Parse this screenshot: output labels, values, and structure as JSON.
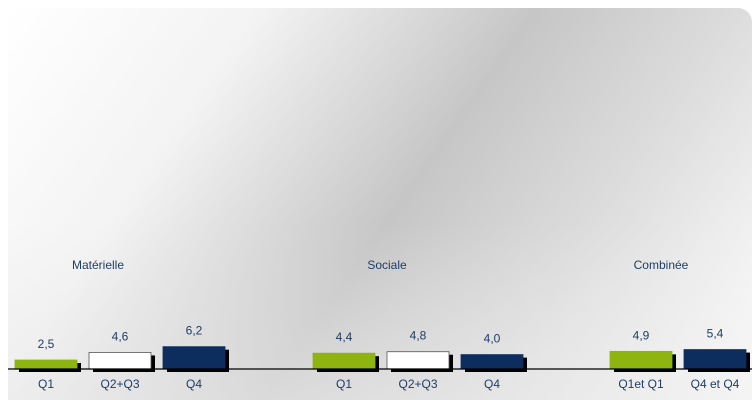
{
  "chart_data": {
    "type": "bar",
    "groups": [
      {
        "title": "Matérielle",
        "bars": [
          {
            "category": "Q1",
            "value_label": "2,5",
            "value": 2.5,
            "color": "#8db40f"
          },
          {
            "category": "Q2+Q3",
            "value_label": "4,6",
            "value": 4.6,
            "color": "#ffffff"
          },
          {
            "category": "Q4",
            "value_label": "6,2",
            "value": 6.2,
            "color": "#0d2d5e"
          }
        ]
      },
      {
        "title": "Sociale",
        "bars": [
          {
            "category": "Q1",
            "value_label": "4,4",
            "value": 4.4,
            "color": "#8db40f"
          },
          {
            "category": "Q2+Q3",
            "value_label": "4,8",
            "value": 4.8,
            "color": "#ffffff"
          },
          {
            "category": "Q4",
            "value_label": "4,0",
            "value": 4.0,
            "color": "#0d2d5e"
          }
        ]
      },
      {
        "title": "Combinée",
        "bars": [
          {
            "category": "Q1et Q1",
            "value_label": "4,9",
            "value": 4.9,
            "color": "#8db40f"
          },
          {
            "category": "Q4 et Q4",
            "value_label": "5,4",
            "value": 5.4,
            "color": "#0d2d5e"
          }
        ]
      }
    ],
    "ylim": [
      0,
      100
    ],
    "grid": false,
    "legend": "none"
  }
}
